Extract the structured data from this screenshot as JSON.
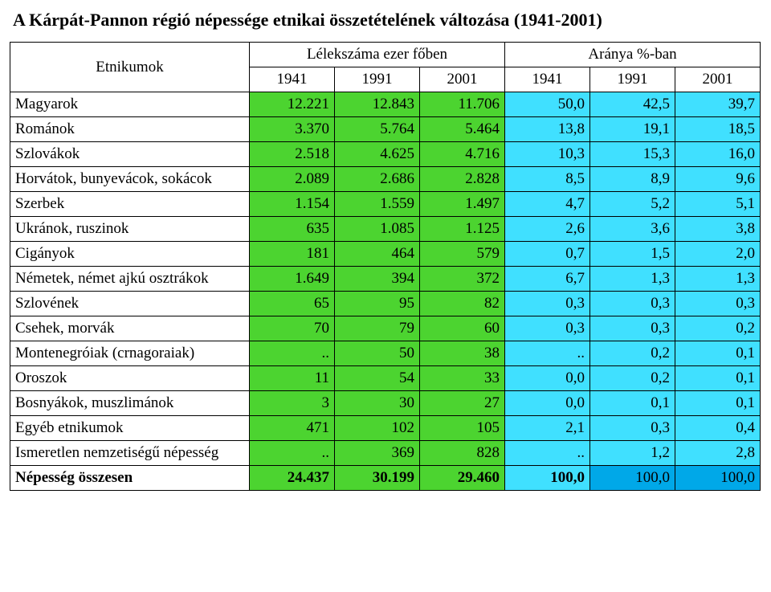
{
  "title": "A Kárpát-Pannon régió  népessége etnikai összetételének változása (1941-2001)",
  "header": {
    "ethnicities_label": "Etnikumok",
    "population_label": "Lélekszáma ezer főben",
    "share_label": "Aránya %-ban",
    "years": [
      "1941",
      "1991",
      "2001",
      "1941",
      "1991",
      "2001"
    ]
  },
  "colors": {
    "green": "#4cd430",
    "cyan": "#40e0ff",
    "darkcyan": "#00a8e8",
    "white": "#ffffff",
    "black": "#000000"
  },
  "column_colors": [
    "white",
    "green",
    "green",
    "green",
    "cyan",
    "cyan",
    "cyan"
  ],
  "rows": [
    {
      "label": "Magyarok",
      "cells": [
        "12.221",
        "12.843",
        "11.706",
        "50,0",
        "42,5",
        "39,7"
      ]
    },
    {
      "label": "Románok",
      "cells": [
        "3.370",
        "5.764",
        "5.464",
        "13,8",
        "19,1",
        "18,5"
      ]
    },
    {
      "label": "Szlovákok",
      "cells": [
        "2.518",
        "4.625",
        "4.716",
        "10,3",
        "15,3",
        "16,0"
      ]
    },
    {
      "label": "Horvátok, bunyevácok, sokácok",
      "cells": [
        "2.089",
        "2.686",
        "2.828",
        "8,5",
        "8,9",
        "9,6"
      ]
    },
    {
      "label": "Szerbek",
      "cells": [
        "1.154",
        "1.559",
        "1.497",
        "4,7",
        "5,2",
        "5,1"
      ]
    },
    {
      "label": "Ukránok, ruszinok",
      "cells": [
        "635",
        "1.085",
        "1.125",
        "2,6",
        "3,6",
        "3,8"
      ]
    },
    {
      "label": "Cigányok",
      "cells": [
        "181",
        "464",
        "579",
        "0,7",
        "1,5",
        "2,0"
      ]
    },
    {
      "label": "Németek, német ajkú osztrákok",
      "cells": [
        "1.649",
        "394",
        "372",
        "6,7",
        "1,3",
        "1,3"
      ]
    },
    {
      "label": "Szlovének",
      "cells": [
        "65",
        "95",
        "82",
        "0,3",
        "0,3",
        "0,3"
      ]
    },
    {
      "label": "Csehek, morvák",
      "cells": [
        "70",
        "79",
        "60",
        "0,3",
        "0,3",
        "0,2"
      ]
    },
    {
      "label": "Montenegróiak (crnagoraiak)",
      "cells": [
        "..",
        "50",
        "38",
        "..",
        "0,2",
        "0,1"
      ]
    },
    {
      "label": "Oroszok",
      "cells": [
        "11",
        "54",
        "33",
        "0,0",
        "0,2",
        "0,1"
      ]
    },
    {
      "label": "Bosnyákok, muszlimánok",
      "cells": [
        "3",
        "30",
        "27",
        "0,0",
        "0,1",
        "0,1"
      ]
    },
    {
      "label": "Egyéb etnikumok",
      "cells": [
        "471",
        "102",
        "105",
        "2,1",
        "0,3",
        "0,4"
      ]
    },
    {
      "label": "Ismeretlen nemzetiségű népesség",
      "cells": [
        "..",
        "369",
        "828",
        "..",
        "1,2",
        "2,8"
      ]
    }
  ],
  "total": {
    "label": "Népesség összesen",
    "cells": [
      "24.437",
      "30.199",
      "29.460",
      "100,0",
      "100,0",
      "100,0"
    ],
    "pct_colors": [
      "cyan",
      "darkcyan",
      "darkcyan"
    ]
  }
}
